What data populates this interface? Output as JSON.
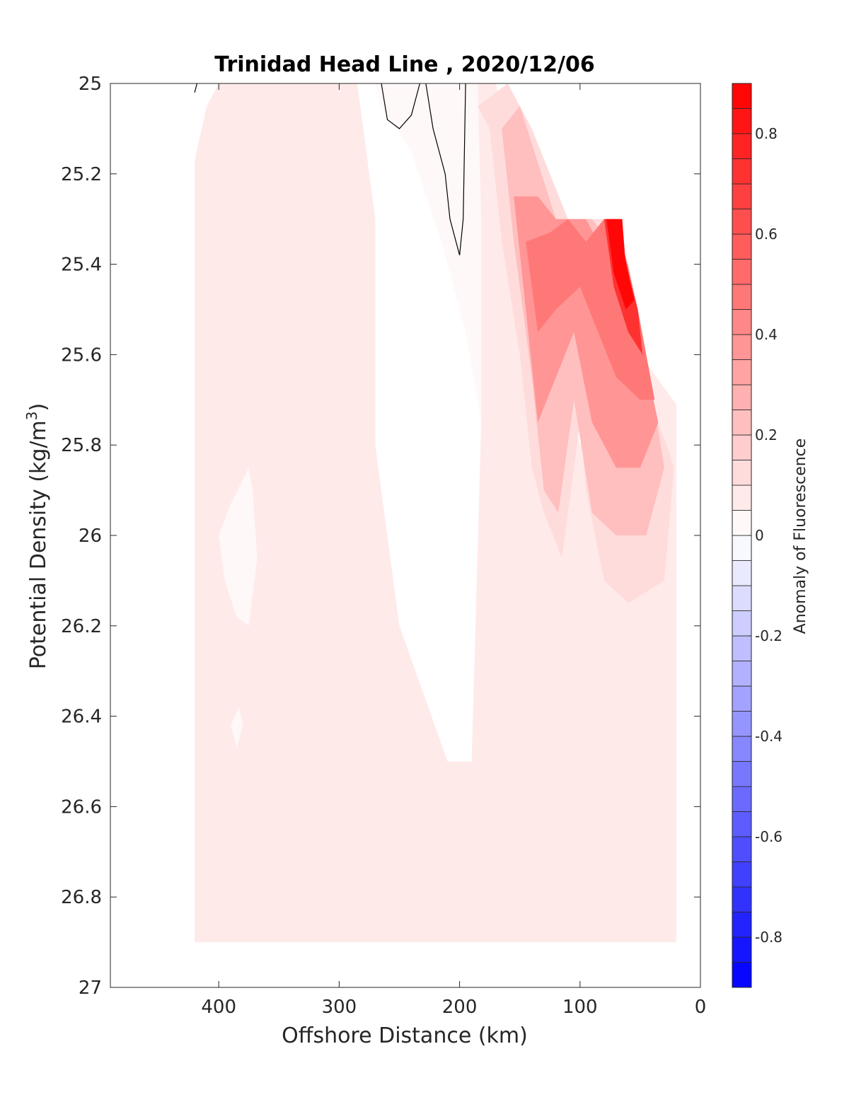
{
  "chart_data": {
    "type": "heatmap",
    "subtype": "filled contour section",
    "title": "Trinidad Head Line , 2020/12/06",
    "xlabel": "Offshore Distance (km)",
    "ylabel_text": "Potential Density (kg/m",
    "ylabel_sup": "3",
    "ylabel_close": ")",
    "colorbar_label": "Anomaly of Fluorescence",
    "x_reversed": true,
    "xlim": [
      490,
      0
    ],
    "ylim": [
      25,
      27
    ],
    "y_reversed": true,
    "x_ticks": [
      400,
      300,
      200,
      100,
      0
    ],
    "x_tick_labels": [
      "400",
      "300",
      "200",
      "100",
      "0"
    ],
    "y_ticks": [
      25,
      25.2,
      25.4,
      25.6,
      25.8,
      26,
      26.2,
      26.4,
      26.6,
      26.8,
      27
    ],
    "y_tick_labels": [
      "25",
      "25.2",
      "25.4",
      "25.6",
      "25.8",
      "26",
      "26.2",
      "26.4",
      "26.6",
      "26.8",
      "27"
    ],
    "colorbar_range": [
      -0.9,
      0.9
    ],
    "colorbar_ticks": [
      0.8,
      0.6,
      0.4,
      0.2,
      0,
      -0.2,
      -0.4,
      -0.6,
      -0.8
    ],
    "colorbar_tick_labels": [
      "0.8",
      "0.6",
      "0.4",
      "0.2",
      "0",
      "-0.2",
      "-0.4",
      "-0.6",
      "-0.8"
    ],
    "colorbar_levels": 36,
    "colormap": {
      "negative": "#0000ff",
      "zero": "#ffffff",
      "positive": "#ff0000"
    },
    "data_extent": {
      "x": [
        420,
        20
      ],
      "y": [
        25,
        26.9
      ]
    },
    "regions": [
      {
        "name": "background-anomaly",
        "value": 0.05,
        "polygon": [
          [
            420,
            26.9
          ],
          [
            420,
            25.17
          ],
          [
            410,
            25.05
          ],
          [
            400,
            25
          ],
          [
            290,
            25
          ],
          [
            285,
            25
          ],
          [
            270,
            25.3
          ],
          [
            270,
            25.8
          ],
          [
            250,
            26.2
          ],
          [
            210,
            26.5
          ],
          [
            190,
            26.5
          ],
          [
            182,
            25.75
          ],
          [
            185,
            25
          ],
          [
            170,
            25
          ],
          [
            100,
            25.8
          ],
          [
            50,
            25.6
          ],
          [
            20,
            25.71
          ],
          [
            20,
            26.9
          ]
        ]
      },
      {
        "name": "near-zero-area-top",
        "value": 0.0,
        "polygon": [
          [
            270,
            25
          ],
          [
            185,
            25
          ],
          [
            182,
            25.3
          ],
          [
            182,
            25.75
          ],
          [
            195,
            25.55
          ],
          [
            215,
            25.35
          ],
          [
            240,
            25.15
          ],
          [
            265,
            25.05
          ]
        ]
      },
      {
        "name": "patch-left-a",
        "value": 0.0,
        "polygon": [
          [
            375,
            25.85
          ],
          [
            390,
            25.93
          ],
          [
            400,
            26
          ],
          [
            395,
            26.1
          ],
          [
            385,
            26.18
          ],
          [
            375,
            26.2
          ],
          [
            368,
            26.05
          ],
          [
            372,
            25.9
          ]
        ]
      },
      {
        "name": "patch-left-b",
        "value": 0.0,
        "polygon": [
          [
            383,
            26.38
          ],
          [
            390,
            26.42
          ],
          [
            385,
            26.47
          ],
          [
            380,
            26.42
          ]
        ]
      },
      {
        "name": "anomaly-0.1",
        "value": 0.12,
        "polygon": [
          [
            185,
            25.05
          ],
          [
            175,
            25.1
          ],
          [
            165,
            25.35
          ],
          [
            150,
            25.6
          ],
          [
            140,
            25.85
          ],
          [
            130,
            25.95
          ],
          [
            115,
            26.05
          ],
          [
            100,
            25.75
          ],
          [
            95,
            25.9
          ],
          [
            80,
            26.1
          ],
          [
            60,
            26.15
          ],
          [
            30,
            26.1
          ],
          [
            22,
            25.85
          ],
          [
            28,
            25.8
          ],
          [
            40,
            25.72
          ],
          [
            60,
            25.5
          ],
          [
            80,
            25.3
          ],
          [
            110,
            25.3
          ],
          [
            140,
            25.1
          ],
          [
            160,
            25
          ]
        ]
      },
      {
        "name": "anomaly-0.2",
        "value": 0.22,
        "polygon": [
          [
            165,
            25.1
          ],
          [
            155,
            25.35
          ],
          [
            140,
            25.65
          ],
          [
            130,
            25.9
          ],
          [
            118,
            25.95
          ],
          [
            105,
            25.7
          ],
          [
            90,
            25.95
          ],
          [
            70,
            26
          ],
          [
            45,
            26
          ],
          [
            30,
            25.85
          ],
          [
            45,
            25.6
          ],
          [
            60,
            25.4
          ],
          [
            90,
            25.3
          ],
          [
            120,
            25.3
          ],
          [
            150,
            25.05
          ]
        ]
      },
      {
        "name": "anomaly-0.35",
        "value": 0.35,
        "polygon": [
          [
            155,
            25.25
          ],
          [
            145,
            25.5
          ],
          [
            135,
            25.75
          ],
          [
            120,
            25.65
          ],
          [
            105,
            25.55
          ],
          [
            90,
            25.75
          ],
          [
            70,
            25.85
          ],
          [
            50,
            25.85
          ],
          [
            35,
            25.75
          ],
          [
            55,
            25.5
          ],
          [
            70,
            25.3
          ],
          [
            85,
            25.35
          ],
          [
            95,
            25.3
          ],
          [
            120,
            25.3
          ],
          [
            135,
            25.25
          ]
        ]
      },
      {
        "name": "anomaly-0.5",
        "value": 0.5,
        "polygon": [
          [
            145,
            25.35
          ],
          [
            135,
            25.55
          ],
          [
            120,
            25.5
          ],
          [
            100,
            25.45
          ],
          [
            85,
            25.55
          ],
          [
            70,
            25.65
          ],
          [
            50,
            25.7
          ],
          [
            38,
            25.7
          ],
          [
            52,
            25.5
          ],
          [
            65,
            25.35
          ],
          [
            80,
            25.3
          ],
          [
            95,
            25.35
          ],
          [
            110,
            25.3
          ],
          [
            125,
            25.33
          ]
        ]
      },
      {
        "name": "anomaly-0.7",
        "value": 0.7,
        "polygon": [
          [
            80,
            25.3
          ],
          [
            65,
            25.3
          ],
          [
            62,
            25.4
          ],
          [
            52,
            25.5
          ],
          [
            48,
            25.6
          ],
          [
            60,
            25.55
          ],
          [
            72,
            25.45
          ]
        ]
      },
      {
        "name": "anomaly-0.85",
        "value": 0.85,
        "polygon": [
          [
            78,
            25.3
          ],
          [
            65,
            25.3
          ],
          [
            63,
            25.38
          ],
          [
            55,
            25.48
          ],
          [
            62,
            25.5
          ],
          [
            72,
            25.42
          ]
        ]
      }
    ],
    "contour_lines": [
      {
        "level": 0,
        "points": [
          [
            420,
            25.02
          ],
          [
            418,
            25
          ]
        ]
      },
      {
        "level": 0,
        "points": [
          [
            265,
            25
          ],
          [
            260,
            25.08
          ],
          [
            250,
            25.1
          ],
          [
            240,
            25.07
          ],
          [
            233,
            25
          ]
        ]
      },
      {
        "level": 0,
        "points": [
          [
            228,
            25
          ],
          [
            222,
            25.1
          ],
          [
            212,
            25.2
          ],
          [
            208,
            25.3
          ],
          [
            200,
            25.38
          ],
          [
            197,
            25.3
          ],
          [
            195,
            25
          ]
        ]
      }
    ]
  }
}
